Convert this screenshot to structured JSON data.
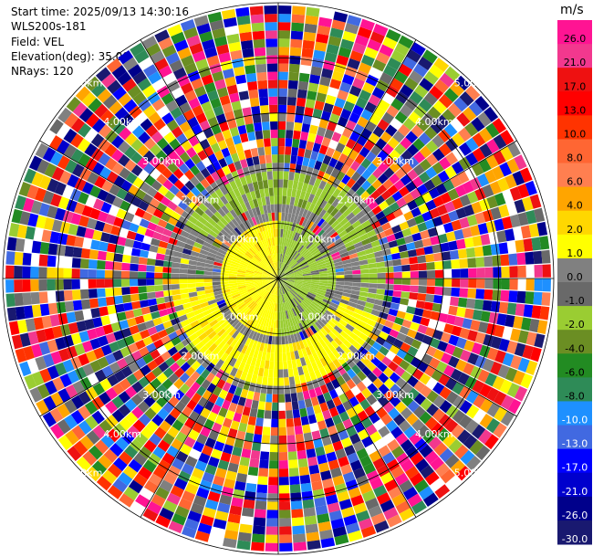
{
  "header": {
    "start_time": "Start time: 2025/09/13 14:30:16",
    "instrument": "WLS200s-181",
    "field": "Field: VEL",
    "elevation": "Elevation(deg): 35.00",
    "nrays": "NRays: 120"
  },
  "chart_data": {
    "type": "heatmap",
    "projection": "polar-ppi",
    "field": "VEL",
    "units": "m/s",
    "nrays": 120,
    "range_rings_km": [
      1.0,
      2.0,
      3.0,
      4.0,
      5.0
    ],
    "ring_labels": [
      "1.00km",
      "2.00km",
      "3.00km",
      "4.00km",
      "5.00km"
    ],
    "max_range_km": 5.0,
    "regions": [
      {
        "range_km": [
          0.0,
          1.0
        ],
        "sector": "west",
        "value_ms": 2.0,
        "class": "yellow"
      },
      {
        "range_km": [
          0.0,
          1.0
        ],
        "sector": "east",
        "value_ms": -1.0,
        "class": "green"
      },
      {
        "range_km": [
          1.0,
          2.0
        ],
        "sector": "north",
        "value_ms": -2.0,
        "class": "green-light"
      },
      {
        "range_km": [
          1.0,
          2.0
        ],
        "sector": "south",
        "value_ms": 3.0,
        "class": "yellow"
      },
      {
        "range_km": [
          1.0,
          2.0
        ],
        "sector": "mixed",
        "value_ms": 0.0,
        "class": "gray"
      },
      {
        "range_km": [
          2.0,
          5.0
        ],
        "sector": "all",
        "value_ms": null,
        "class": "noise"
      }
    ],
    "colorbar": {
      "label": "m/s",
      "ticks": [
        "26.0",
        "21.0",
        "17.0",
        "13.0",
        "10.0",
        "8.0",
        "6.0",
        "4.0",
        "2.0",
        "1.0",
        "0.0",
        "-1.0",
        "-2.0",
        "-4.0",
        "-6.0",
        "-8.0",
        "-10.0",
        "-13.0",
        "-17.0",
        "-21.0",
        "-26.0",
        "-30.0"
      ],
      "colors": [
        "#ff1493",
        "#f2388e",
        "#ee1111",
        "#ff0000",
        "#ff3300",
        "#ff6633",
        "#ff7f50",
        "#ffa500",
        "#ffd700",
        "#ffff00",
        "#808080",
        "#696969",
        "#9acd32",
        "#6b8e23",
        "#228b22",
        "#2e8b57",
        "#1e90ff",
        "#4169e1",
        "#0000ff",
        "#0000cd",
        "#00008b",
        "#191970"
      ]
    }
  }
}
